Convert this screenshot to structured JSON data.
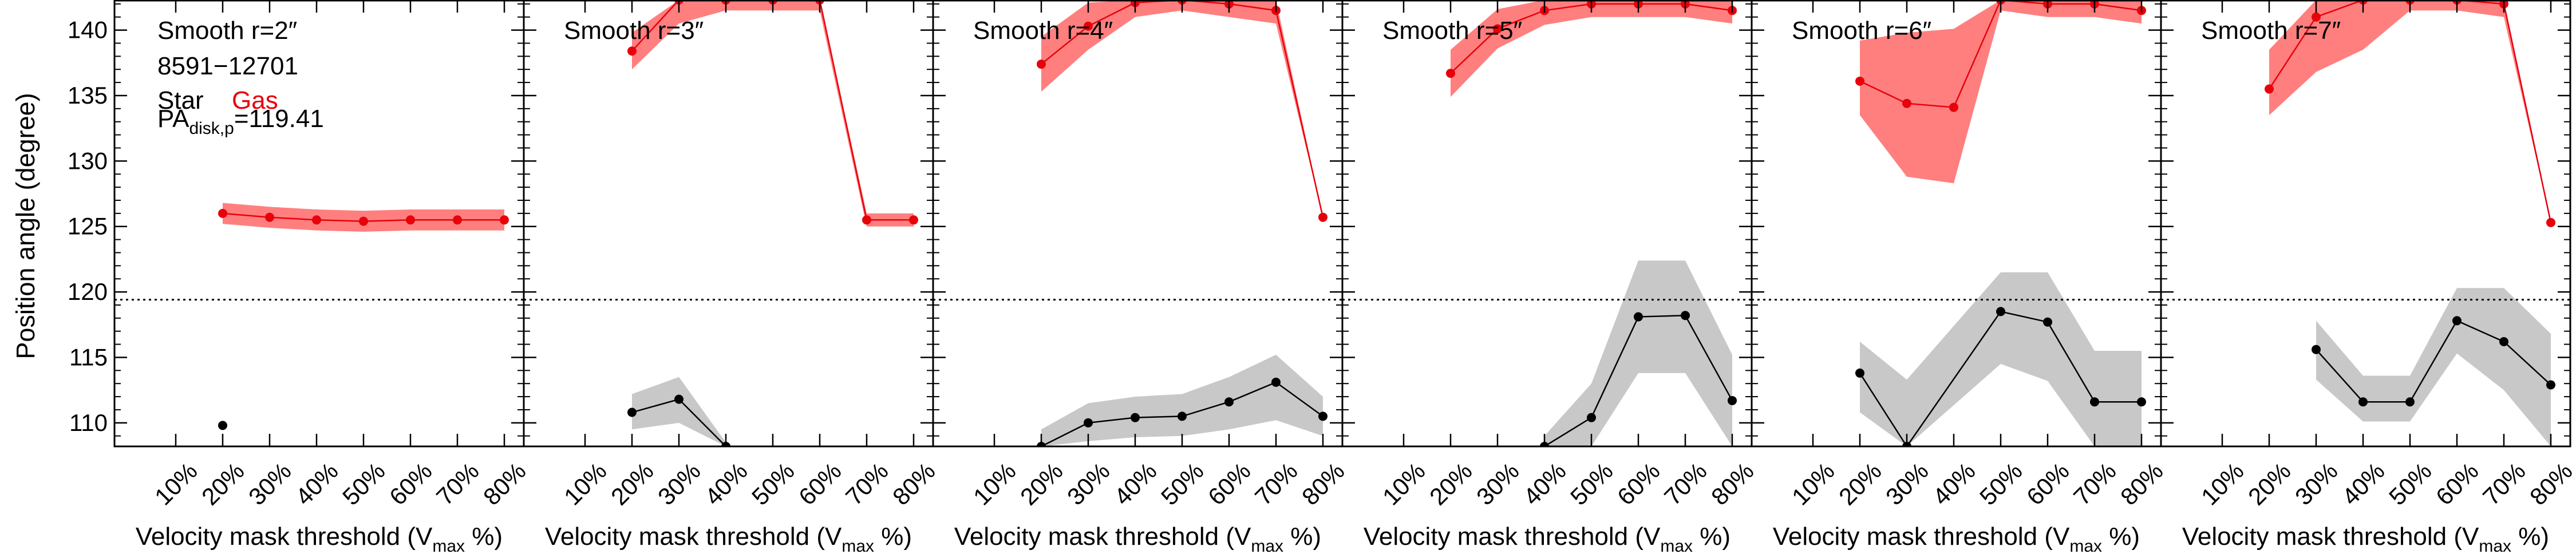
{
  "figure": {
    "ylabel": "Position angle (degree)",
    "xlabel_main": "Velocity mask threshold (V",
    "xlabel_sub": "max",
    "xlabel_tail": " %)",
    "info": {
      "id": "8591−12701",
      "star_label": "Star",
      "gas_label": "Gas",
      "pa_main": "PA",
      "pa_sub": "disk,p",
      "pa_value": "=119.41"
    },
    "colors": {
      "star": "#000000",
      "gas": "#e8000b",
      "star_band": "#c8c8c8",
      "gas_band": "#ff7f7f"
    }
  },
  "chart_data": [
    {
      "type": "line",
      "title": "Smooth r=2″",
      "x": [
        "10%",
        "20%",
        "30%",
        "40%",
        "50%",
        "60%",
        "70%",
        "80%"
      ],
      "ylim": [
        108.2,
        142.3
      ],
      "yticks": [
        110,
        115,
        120,
        125,
        130,
        135,
        140
      ],
      "pa_disk": 119.41,
      "series": [
        {
          "kind": "gas",
          "values": [
            null,
            126.0,
            125.7,
            125.5,
            125.4,
            125.5,
            125.5,
            125.5
          ],
          "lo": [
            null,
            125.2,
            124.9,
            124.7,
            124.6,
            124.7,
            124.7,
            124.7
          ],
          "hi": [
            null,
            126.8,
            126.5,
            126.3,
            126.2,
            126.3,
            126.3,
            126.3
          ]
        },
        {
          "kind": "star",
          "values": [
            null,
            109.8,
            null,
            null,
            null,
            null,
            null,
            null
          ],
          "lo": [
            null,
            108.2,
            null,
            null,
            null,
            null,
            null,
            null
          ],
          "hi": [
            null,
            110.8,
            108.2,
            null,
            null,
            null,
            null,
            null
          ]
        }
      ]
    },
    {
      "type": "line",
      "title": "Smooth r=3″",
      "x": [
        "10%",
        "20%",
        "30%",
        "40%",
        "50%",
        "60%",
        "70%",
        "80%"
      ],
      "ylim": [
        108.2,
        142.3
      ],
      "yticks": [
        110,
        115,
        120,
        125,
        130,
        135,
        140
      ],
      "pa_disk": 119.41,
      "series": [
        {
          "kind": "gas",
          "values": [
            null,
            138.4,
            142.3,
            142.3,
            142.3,
            142.3,
            125.5,
            125.5
          ],
          "lo": [
            null,
            137.0,
            140.5,
            141.5,
            141.5,
            141.5,
            125.0,
            125.0
          ],
          "hi": [
            null,
            139.8,
            142.3,
            142.3,
            142.3,
            142.3,
            126.0,
            126.0
          ]
        },
        {
          "kind": "star",
          "values": [
            null,
            110.8,
            111.8,
            108.2,
            null,
            null,
            null,
            null
          ],
          "lo": [
            null,
            109.5,
            110.0,
            108.2,
            null,
            null,
            null,
            null
          ],
          "hi": [
            null,
            112.2,
            113.5,
            108.5,
            null,
            null,
            null,
            null
          ]
        }
      ]
    },
    {
      "type": "line",
      "title": "Smooth r=4″",
      "x": [
        "10%",
        "20%",
        "30%",
        "40%",
        "50%",
        "60%",
        "70%",
        "80%"
      ],
      "ylim": [
        108.2,
        142.3
      ],
      "yticks": [
        110,
        115,
        120,
        125,
        130,
        135,
        140
      ],
      "pa_disk": 119.41,
      "series": [
        {
          "kind": "gas",
          "values": [
            null,
            137.4,
            140.3,
            142.1,
            142.3,
            142.0,
            141.5,
            125.7
          ],
          "lo": [
            null,
            135.3,
            138.5,
            141.0,
            141.5,
            141.0,
            140.5,
            125.7
          ],
          "hi": [
            null,
            139.5,
            142.1,
            142.3,
            142.3,
            142.3,
            142.3,
            125.7
          ]
        },
        {
          "kind": "star",
          "values": [
            null,
            108.2,
            110.0,
            110.4,
            110.5,
            111.6,
            113.1,
            110.5
          ],
          "lo": [
            null,
            108.2,
            108.6,
            108.9,
            109.0,
            109.5,
            110.2,
            109.0
          ],
          "hi": [
            null,
            109.5,
            111.5,
            112.0,
            112.2,
            113.5,
            115.2,
            112.0
          ]
        }
      ]
    },
    {
      "type": "line",
      "title": "Smooth r=5″",
      "x": [
        "10%",
        "20%",
        "30%",
        "40%",
        "50%",
        "60%",
        "70%",
        "80%"
      ],
      "ylim": [
        108.2,
        142.3
      ],
      "yticks": [
        110,
        115,
        120,
        125,
        130,
        135,
        140
      ],
      "pa_disk": 119.41,
      "series": [
        {
          "kind": "gas",
          "values": [
            null,
            136.7,
            140.1,
            141.5,
            142.0,
            142.0,
            142.0,
            141.5
          ],
          "lo": [
            null,
            134.9,
            138.6,
            140.4,
            141.0,
            141.0,
            141.0,
            140.5
          ],
          "hi": [
            null,
            138.5,
            141.6,
            142.3,
            142.3,
            142.3,
            142.3,
            142.3
          ]
        },
        {
          "kind": "star",
          "values": [
            null,
            null,
            null,
            108.2,
            110.4,
            118.1,
            118.2,
            111.7
          ],
          "lo": [
            null,
            null,
            null,
            108.2,
            108.2,
            113.8,
            113.8,
            108.2
          ],
          "hi": [
            null,
            null,
            null,
            109.0,
            113.0,
            122.4,
            122.4,
            115.2
          ]
        }
      ]
    },
    {
      "type": "line",
      "title": "Smooth r=6″",
      "x": [
        "10%",
        "20%",
        "30%",
        "40%",
        "50%",
        "60%",
        "70%",
        "80%"
      ],
      "ylim": [
        108.2,
        142.3
      ],
      "yticks": [
        110,
        115,
        120,
        125,
        130,
        135,
        140
      ],
      "pa_disk": 119.41,
      "series": [
        {
          "kind": "gas",
          "values": [
            null,
            136.1,
            134.4,
            134.1,
            142.3,
            142.0,
            142.0,
            141.5
          ],
          "lo": [
            null,
            133.5,
            128.8,
            128.3,
            141.5,
            141.0,
            141.0,
            140.5
          ],
          "hi": [
            null,
            139.2,
            139.8,
            140.1,
            142.3,
            142.3,
            142.3,
            142.3
          ]
        },
        {
          "kind": "star",
          "values": [
            null,
            113.8,
            108.2,
            null,
            118.5,
            117.7,
            111.6,
            111.6
          ],
          "lo": [
            null,
            110.8,
            108.2,
            null,
            114.5,
            113.2,
            108.2,
            108.2
          ],
          "hi": [
            null,
            116.2,
            113.3,
            108.5,
            121.5,
            121.5,
            115.5,
            115.5
          ]
        }
      ]
    },
    {
      "type": "line",
      "title": "Smooth r=7″",
      "x": [
        "10%",
        "20%",
        "30%",
        "40%",
        "50%",
        "60%",
        "70%",
        "80%"
      ],
      "ylim": [
        108.2,
        142.3
      ],
      "yticks": [
        110,
        115,
        120,
        125,
        130,
        135,
        140
      ],
      "pa_disk": 119.41,
      "series": [
        {
          "kind": "gas",
          "values": [
            null,
            135.5,
            141.0,
            142.3,
            142.3,
            142.3,
            142.0,
            125.3
          ],
          "lo": [
            null,
            133.5,
            136.8,
            138.5,
            141.5,
            141.5,
            141.0,
            125.3
          ],
          "hi": [
            null,
            138.5,
            142.3,
            142.3,
            142.3,
            142.3,
            142.3,
            125.3
          ]
        },
        {
          "kind": "star",
          "values": [
            null,
            null,
            115.6,
            111.6,
            111.6,
            117.8,
            116.2,
            112.9
          ],
          "lo": [
            null,
            null,
            113.3,
            110.1,
            110.1,
            115.3,
            112.5,
            108.2
          ],
          "hi": [
            null,
            108.2,
            117.8,
            113.6,
            113.6,
            120.3,
            120.3,
            116.8
          ]
        }
      ]
    }
  ]
}
